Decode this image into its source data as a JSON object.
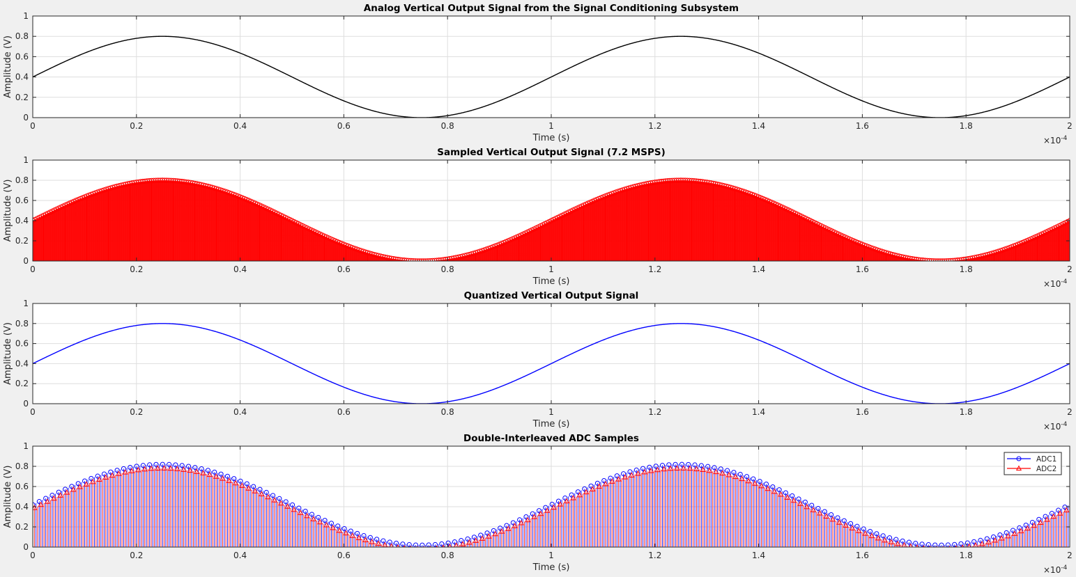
{
  "figure": {
    "background": "#f0f0f0"
  },
  "chart_data": [
    {
      "id": "analog",
      "type": "line",
      "title": "Analog Vertical Output Signal from the Signal Conditioning Subsystem",
      "xlabel": "Time (s)",
      "ylabel": "Amplitude (V)",
      "xlim": [
        0,
        2
      ],
      "ylim": [
        0,
        1
      ],
      "x_exponent_label": "×10",
      "x_exponent": "-4",
      "xticks": [
        0,
        0.2,
        0.4,
        0.6,
        0.8,
        1,
        1.2,
        1.4,
        1.6,
        1.8,
        2
      ],
      "xtick_labels": [
        "0",
        "0.2",
        "0.4",
        "0.6",
        "0.8",
        "1",
        "1.2",
        "1.4",
        "1.6",
        "1.8",
        "2"
      ],
      "yticks": [
        0,
        0.2,
        0.4,
        0.6,
        0.8,
        1
      ],
      "ytick_labels": [
        "0",
        "0.2",
        "0.4",
        "0.6",
        "0.8",
        "1"
      ],
      "grid": true,
      "signal": {
        "offset": 0.4,
        "amplitude": 0.4,
        "period": 1.0,
        "phase": 0
      },
      "series": [
        {
          "name": "Analog",
          "color": "#000000",
          "style": "line"
        }
      ]
    },
    {
      "id": "sampled",
      "type": "stem",
      "title": "Sampled Vertical Output Signal (7.2 MSPS)",
      "xlabel": "Time (s)",
      "ylabel": "Amplitude (V)",
      "xlim": [
        0,
        2
      ],
      "ylim": [
        0,
        1
      ],
      "x_exponent_label": "×10",
      "x_exponent": "-4",
      "xticks": [
        0,
        0.2,
        0.4,
        0.6,
        0.8,
        1,
        1.2,
        1.4,
        1.6,
        1.8,
        2
      ],
      "xtick_labels": [
        "0",
        "0.2",
        "0.4",
        "0.6",
        "0.8",
        "1",
        "1.2",
        "1.4",
        "1.6",
        "1.8",
        "2"
      ],
      "yticks": [
        0,
        0.2,
        0.4,
        0.6,
        0.8,
        1
      ],
      "ytick_labels": [
        "0",
        "0.2",
        "0.4",
        "0.6",
        "0.8",
        "1"
      ],
      "grid": true,
      "signal": {
        "offset": 0.4,
        "amplitude": 0.4,
        "period": 1.0,
        "phase": 0
      },
      "sample_rate_msps": 7.2,
      "sample_count": 1441,
      "series": [
        {
          "name": "Sampled",
          "color": "#ff0000",
          "marker": "circle",
          "style": "stem"
        }
      ]
    },
    {
      "id": "quantized",
      "type": "line",
      "title": "Quantized Vertical Output Signal",
      "xlabel": "Time (s)",
      "ylabel": "Amplitude (V)",
      "xlim": [
        0,
        2
      ],
      "ylim": [
        0,
        1
      ],
      "x_exponent_label": "×10",
      "x_exponent": "-4",
      "xticks": [
        0,
        0.2,
        0.4,
        0.6,
        0.8,
        1,
        1.2,
        1.4,
        1.6,
        1.8,
        2
      ],
      "xtick_labels": [
        "0",
        "0.2",
        "0.4",
        "0.6",
        "0.8",
        "1",
        "1.2",
        "1.4",
        "1.6",
        "1.8",
        "2"
      ],
      "yticks": [
        0,
        0.2,
        0.4,
        0.6,
        0.8,
        1
      ],
      "ytick_labels": [
        "0",
        "0.2",
        "0.4",
        "0.6",
        "0.8",
        "1"
      ],
      "grid": true,
      "signal": {
        "offset": 0.4,
        "amplitude": 0.4,
        "period": 1.0,
        "phase": 0
      },
      "series": [
        {
          "name": "Quantized",
          "color": "#0000ff",
          "style": "line"
        }
      ]
    },
    {
      "id": "interleaved",
      "type": "stem",
      "title": "Double-Interleaved ADC Samples",
      "xlabel": "Time (s)",
      "ylabel": "Amplitude (V)",
      "xlim": [
        0,
        2
      ],
      "ylim": [
        0,
        1
      ],
      "x_exponent_label": "×10",
      "x_exponent": "-4",
      "xticks": [
        0,
        0.2,
        0.4,
        0.6,
        0.8,
        1,
        1.2,
        1.4,
        1.6,
        1.8,
        2
      ],
      "xtick_labels": [
        "0",
        "0.2",
        "0.4",
        "0.6",
        "0.8",
        "1",
        "1.2",
        "1.4",
        "1.6",
        "1.8",
        "2"
      ],
      "yticks": [
        0,
        0.2,
        0.4,
        0.6,
        0.8,
        1
      ],
      "ytick_labels": [
        "0",
        "0.2",
        "0.4",
        "0.6",
        "0.8",
        "1"
      ],
      "grid": true,
      "signal": {
        "offset": 0.4,
        "amplitude": 0.4,
        "period": 1.0,
        "phase": 0
      },
      "legend": {
        "location": "top-right"
      },
      "series": [
        {
          "name": "ADC1",
          "color": "#0000ff",
          "marker": "circle",
          "style": "stem",
          "offset": 0.02
        },
        {
          "name": "ADC2",
          "color": "#ff0000",
          "marker": "triangle",
          "style": "stem",
          "offset": -0.02
        }
      ]
    }
  ]
}
